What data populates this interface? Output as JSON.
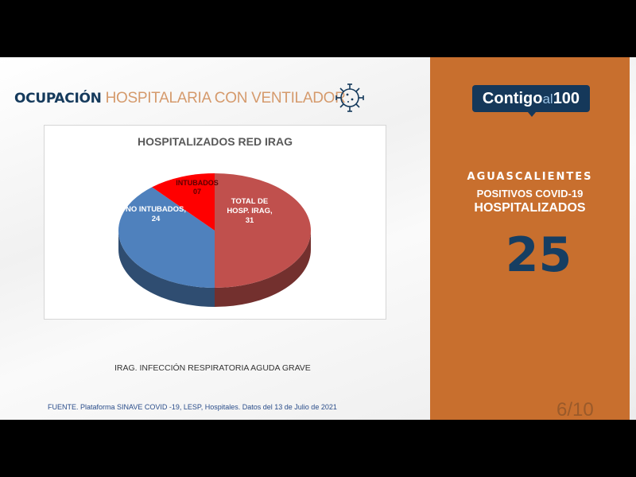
{
  "header": {
    "title_bold": "OCUPACIÓN",
    "title_light": "HOSPITALARIA CON VENTILADOR",
    "icon": "virus-icon"
  },
  "chart_data": {
    "type": "pie",
    "title": "HOSPITALIZADOS RED IRAG",
    "style": "3d",
    "slices": [
      {
        "label": "TOTAL DE HOSP. IRAG",
        "value": 31,
        "display": "31",
        "color": "#c0504d"
      },
      {
        "label": "NO INTUBADOS",
        "value": 24,
        "display": "24",
        "color": "#4f81bd"
      },
      {
        "label": "INTUBADOS",
        "value": 7,
        "display": "07",
        "color": "#ff0000"
      }
    ]
  },
  "labels": {
    "total_line1": "TOTAL DE",
    "total_line2": "HOSP. IRAG,",
    "total_value": "31",
    "no_intubados": "NO INTUBADOS,",
    "no_intubados_value": "24",
    "intubados": "INTUBADOS",
    "intubados_value": "07"
  },
  "note": "IRAG. INFECCIÓN RESPIRATORIA AGUDA GRAVE",
  "source": "FUENTE. Plataforma SINAVE COVID -19, LESP, Hospitales. Datos del 13 de Julio de 2021",
  "panel": {
    "logo_main": "Contigo",
    "logo_al": "al",
    "logo_num": "100",
    "state": "AGUASCALIENTES",
    "line2": "POSITIVOS COVID-19",
    "line3": "HOSPITALIZADOS",
    "count": "25",
    "page": "6/10",
    "color": "#c86f2e",
    "accent": "#163e62"
  }
}
